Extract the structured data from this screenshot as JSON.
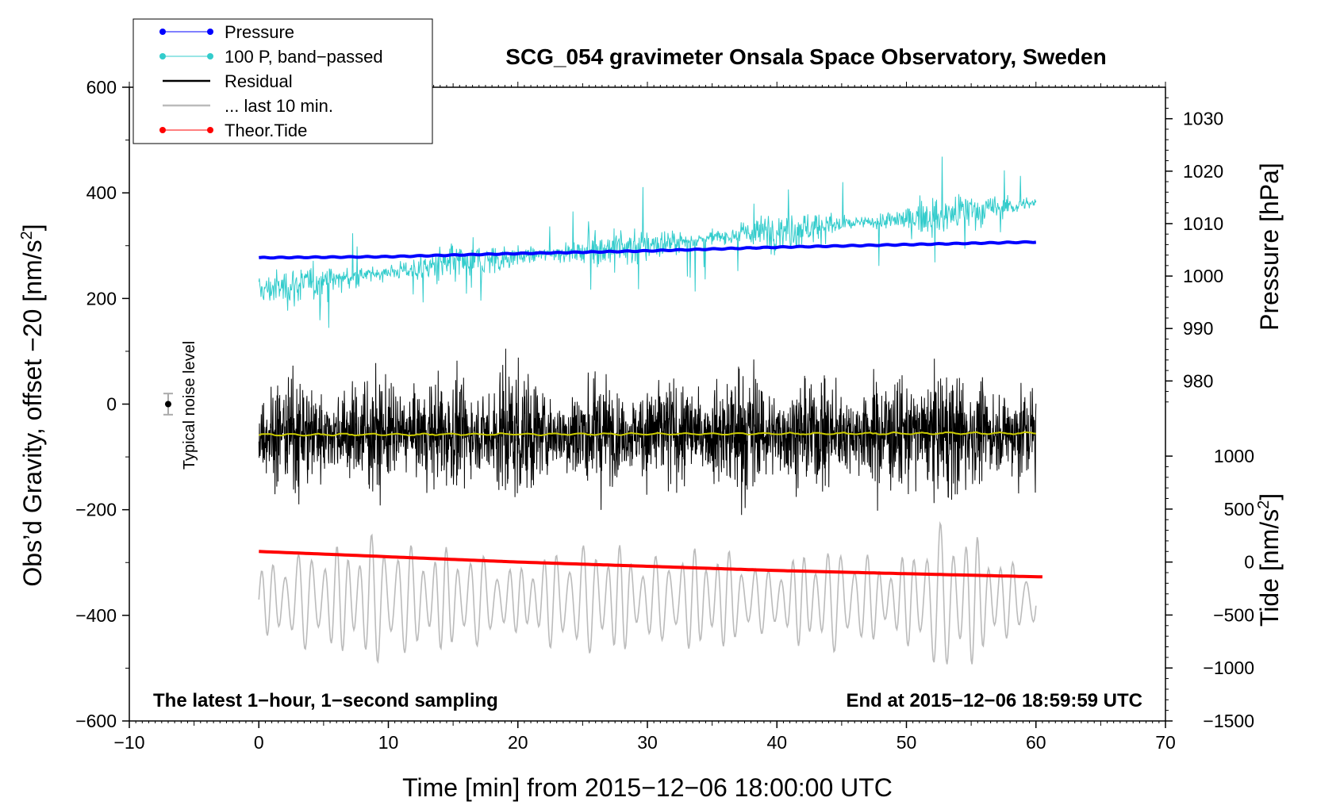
{
  "chart_data": {
    "type": "line",
    "title": "SCG_054 gravimeter Onsala Space Observatory, Sweden",
    "xlabel": "Time [min] from 2015−12−06 18:00:00 UTC",
    "ylabel_left_main": "Obs’d Gravity, offset −20 [nm/s",
    "ylabel_left_sup": "2",
    "ylabel_left_end": "]",
    "ylabel_right_pressure": "Pressure [hPa]",
    "ylabel_right_tide_main": "Tide [nm/s",
    "ylabel_right_tide_sup": "2",
    "ylabel_right_tide_end": "]",
    "xlim": [
      -10,
      70
    ],
    "ylim": [
      -600,
      600
    ],
    "pressure_lim": [
      974,
      1036
    ],
    "tide_lim": [
      -1500,
      1300
    ],
    "x_ticks": [
      {
        "value": -10,
        "label": "−10"
      },
      {
        "value": 0,
        "label": "0"
      },
      {
        "value": 10,
        "label": "10"
      },
      {
        "value": 20,
        "label": "20"
      },
      {
        "value": 30,
        "label": "30"
      },
      {
        "value": 40,
        "label": "40"
      },
      {
        "value": 50,
        "label": "50"
      },
      {
        "value": 60,
        "label": "60"
      },
      {
        "value": 70,
        "label": "70"
      }
    ],
    "y_ticks": [
      {
        "value": 600,
        "label": "600"
      },
      {
        "value": 400,
        "label": "400"
      },
      {
        "value": 200,
        "label": "200"
      },
      {
        "value": 0,
        "label": "0"
      },
      {
        "value": -200,
        "label": "−200"
      },
      {
        "value": -400,
        "label": "−400"
      },
      {
        "value": -600,
        "label": "−600"
      }
    ],
    "pressure_ticks": [
      {
        "value": 1030,
        "label": "1030"
      },
      {
        "value": 1020,
        "label": "1020"
      },
      {
        "value": 1010,
        "label": "1010"
      },
      {
        "value": 1000,
        "label": "1000"
      },
      {
        "value": 990,
        "label": "990"
      },
      {
        "value": 980,
        "label": "980"
      }
    ],
    "tide_ticks": [
      {
        "value": 1000,
        "label": "1000"
      },
      {
        "value": 500,
        "label": "500"
      },
      {
        "value": 0,
        "label": "0"
      },
      {
        "value": -500,
        "label": "−500"
      },
      {
        "value": -1000,
        "label": "−1000"
      },
      {
        "value": -1500,
        "label": "−1500"
      }
    ],
    "legend": [
      {
        "label": "Pressure",
        "color": "#0000ff",
        "marker": true
      },
      {
        "label": "100 P, band−passed",
        "color": "#33cccc",
        "marker": true
      },
      {
        "label": "Residual",
        "color": "#000000",
        "marker": false
      },
      {
        "label": "... last 10 min.",
        "color": "#bbbbbb",
        "marker": false
      },
      {
        "label": "Theor.Tide",
        "color": "#ff0000",
        "marker": true
      }
    ],
    "annotations": {
      "bottom_left": "The latest 1−hour, 1−second sampling",
      "bottom_right": "End at 2015−12−06 18:59:59 UTC",
      "noise_label": "Typical noise level"
    },
    "noise_bar": {
      "x": -7,
      "y": 0,
      "err": 20
    },
    "series": [
      {
        "name": "Pressure",
        "color": "#0000ff",
        "axis": "pressure",
        "x": [
          0,
          10,
          20,
          30,
          40,
          50,
          60
        ],
        "values": [
          1003.5,
          1003.7,
          1004.3,
          1004.8,
          1005.5,
          1006.0,
          1006.5
        ]
      },
      {
        "name": "100 P, band−passed",
        "color": "#33cccc",
        "axis": "left",
        "x": [
          0,
          10,
          20,
          30,
          40,
          50,
          60
        ],
        "values": [
          215,
          250,
          280,
          300,
          330,
          350,
          380
        ]
      },
      {
        "name": "Residual",
        "color": "#000000",
        "axis": "left",
        "x": [
          0,
          10,
          20,
          30,
          40,
          50,
          60
        ],
        "values": [
          -55,
          -55,
          -55,
          -55,
          -55,
          -55,
          -55
        ]
      },
      {
        "name": "... last 10 min.",
        "color": "#bbbbbb",
        "axis": "left",
        "x": [
          0,
          10,
          20,
          30,
          40,
          50,
          60
        ],
        "values": [
          -370,
          -370,
          -370,
          -370,
          -370,
          -370,
          -370
        ]
      },
      {
        "name": "Theor.Tide",
        "color": "#ff0000",
        "axis": "tide",
        "x": [
          0,
          10,
          20,
          30,
          40,
          50,
          60.5
        ],
        "values": [
          100,
          50,
          0,
          -40,
          -80,
          -110,
          -140
        ]
      },
      {
        "name": "Residual mean",
        "color": "#cccc00",
        "axis": "left",
        "x": [
          0,
          60
        ],
        "values": [
          -58,
          -55
        ]
      }
    ]
  }
}
